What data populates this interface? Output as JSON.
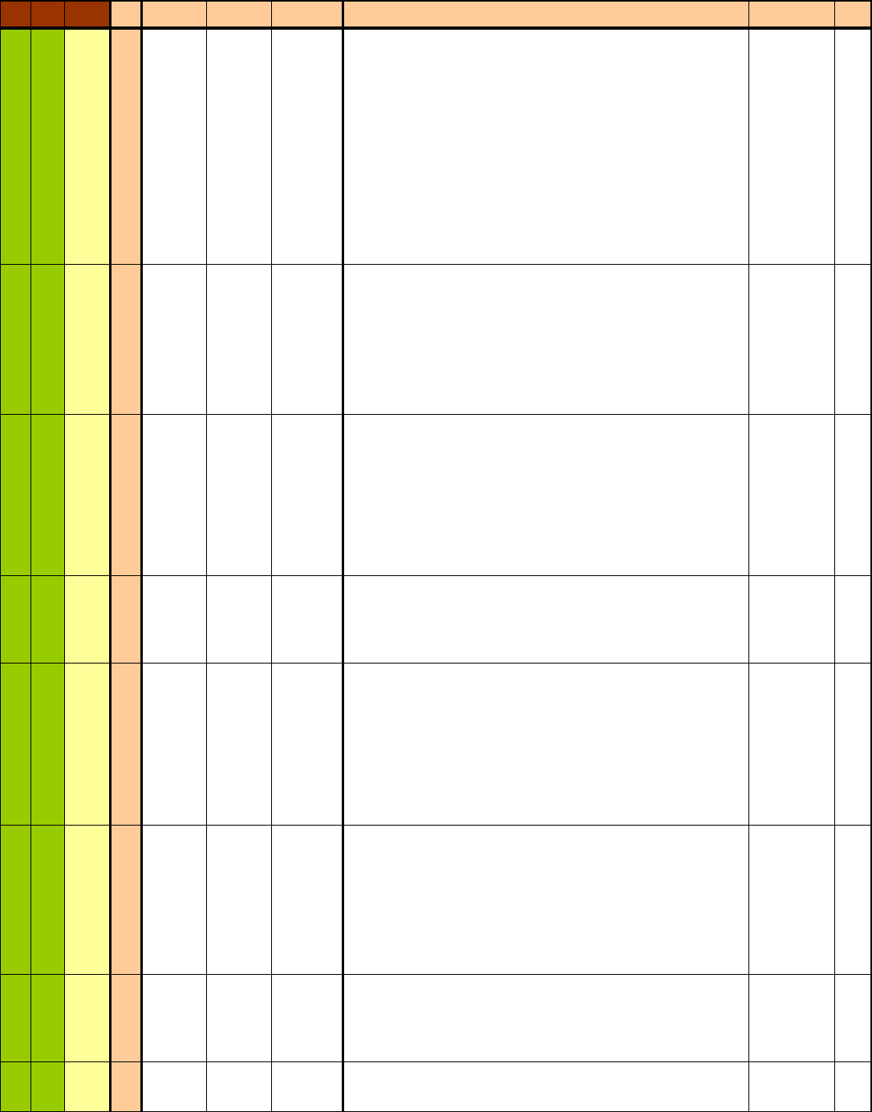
{
  "colors": {
    "header_dark": "#993300",
    "header_light": "#FFCC99",
    "status_green": "#99CC00",
    "status_yellow": "#FFFF99",
    "index_column": "#FFCC99",
    "body": "#FFFFFF",
    "grid": "#000000"
  },
  "table": {
    "header_cells": [
      "",
      "",
      "",
      "",
      "",
      "",
      "",
      "",
      "",
      ""
    ],
    "rows": [
      [
        "",
        "",
        "",
        "",
        "",
        "",
        "",
        "",
        "",
        ""
      ],
      [
        "",
        "",
        "",
        "",
        "",
        "",
        "",
        "",
        "",
        ""
      ],
      [
        "",
        "",
        "",
        "",
        "",
        "",
        "",
        "",
        "",
        ""
      ],
      [
        "",
        "",
        "",
        "",
        "",
        "",
        "",
        "",
        "",
        ""
      ],
      [
        "",
        "",
        "",
        "",
        "",
        "",
        "",
        "",
        "",
        ""
      ],
      [
        "",
        "",
        "",
        "",
        "",
        "",
        "",
        "",
        "",
        ""
      ],
      [
        "",
        "",
        "",
        "",
        "",
        "",
        "",
        "",
        "",
        ""
      ],
      [
        "",
        "",
        "",
        "",
        "",
        "",
        "",
        "",
        "",
        ""
      ]
    ]
  }
}
